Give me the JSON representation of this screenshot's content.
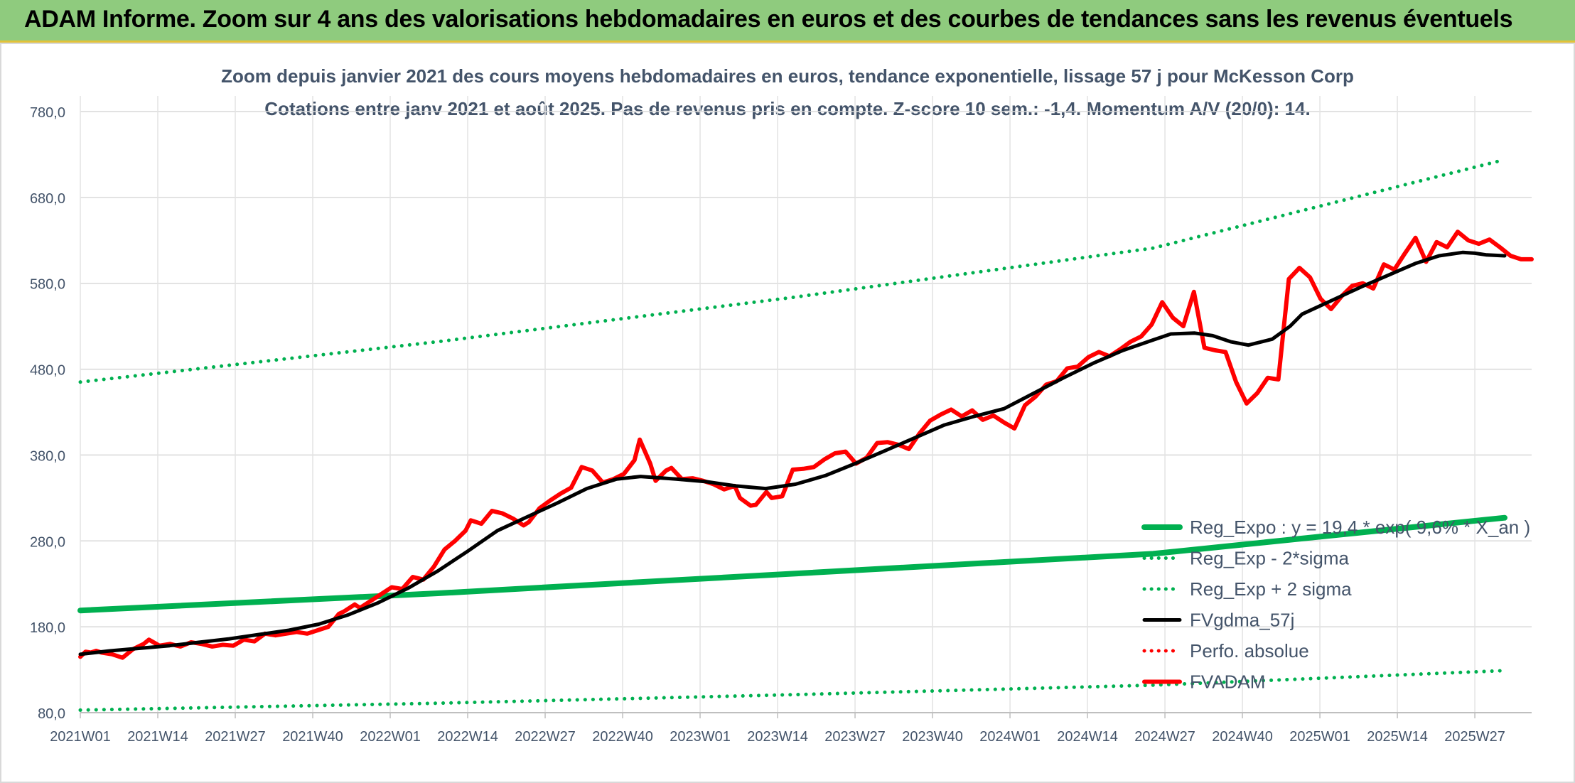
{
  "banner": {
    "title": "ADAM Informe. Zoom sur 4 ans des valorisations hebdomadaires en euros et des courbes de tendances sans les revenus éventuels"
  },
  "chart_data": {
    "type": "line",
    "title": "Zoom depuis janvier 2021 des cours moyens hebdomadaires en euros, tendance exponentielle, lissage 57 j pour McKesson Corp",
    "subtitle": "Cotations entre janv 2021 et août 2025. Pas de revenus pris en compte. Z-score 10 sem.: -1,4. Momentum A/V (20/0): 14.",
    "xlabel": "",
    "ylabel": "",
    "ylim": [
      80,
      780
    ],
    "y_ticks": [
      "80,0",
      "180,0",
      "280,0",
      "380,0",
      "480,0",
      "580,0",
      "680,0",
      "780,0"
    ],
    "x_ticks": [
      {
        "label": "2021W01",
        "week": 0
      },
      {
        "label": "2021W14",
        "week": 13
      },
      {
        "label": "2021W27",
        "week": 26
      },
      {
        "label": "2021W40",
        "week": 39
      },
      {
        "label": "2022W01",
        "week": 52
      },
      {
        "label": "2022W14",
        "week": 65
      },
      {
        "label": "2022W27",
        "week": 78
      },
      {
        "label": "2022W40",
        "week": 91
      },
      {
        "label": "2023W01",
        "week": 104
      },
      {
        "label": "2023W14",
        "week": 117
      },
      {
        "label": "2023W27",
        "week": 130
      },
      {
        "label": "2023W40",
        "week": 143
      },
      {
        "label": "2024W01",
        "week": 156
      },
      {
        "label": "2024W14",
        "week": 169
      },
      {
        "label": "2024W27",
        "week": 182
      },
      {
        "label": "2024W40",
        "week": 195
      },
      {
        "label": "2025W01",
        "week": 208
      },
      {
        "label": "2025W14",
        "week": 221
      },
      {
        "label": "2025W27",
        "week": 234
      }
    ],
    "x_max_week": 239,
    "grid": true,
    "legend_position": "bottom-right",
    "series": [
      {
        "name": "Reg_Expo : y = 19,4 * exp( 9,6% * X_an )",
        "color": "#00b050",
        "style": "solid",
        "width": 8,
        "points": [
          [
            0,
            199
          ],
          [
            60,
            219
          ],
          [
            120,
            242
          ],
          [
            180,
            265
          ],
          [
            239,
            307
          ]
        ]
      },
      {
        "name": "Reg_Exp - 2*sigma",
        "color": "#00b050",
        "style": "dotted",
        "width": 5,
        "points": [
          [
            0,
            83
          ],
          [
            60,
            91
          ],
          [
            120,
            101
          ],
          [
            180,
            112
          ],
          [
            239,
            129
          ]
        ]
      },
      {
        "name": "Reg_Exp + 2 sigma",
        "color": "#00b050",
        "style": "dotted",
        "width": 5,
        "points": [
          [
            0,
            465
          ],
          [
            60,
            512
          ],
          [
            120,
            564
          ],
          [
            180,
            621
          ],
          [
            239,
            724
          ]
        ]
      },
      {
        "name": "FVgdma_57j",
        "color": "#000000",
        "style": "solid",
        "width": 5,
        "points": [
          [
            0,
            148
          ],
          [
            5,
            152
          ],
          [
            10,
            155
          ],
          [
            15,
            158
          ],
          [
            20,
            162
          ],
          [
            25,
            166
          ],
          [
            30,
            171
          ],
          [
            35,
            176
          ],
          [
            40,
            183
          ],
          [
            45,
            194
          ],
          [
            50,
            208
          ],
          [
            55,
            225
          ],
          [
            60,
            245
          ],
          [
            65,
            268
          ],
          [
            70,
            292
          ],
          [
            75,
            308
          ],
          [
            80,
            324
          ],
          [
            85,
            341
          ],
          [
            90,
            352
          ],
          [
            94,
            355
          ],
          [
            100,
            352
          ],
          [
            105,
            349
          ],
          [
            110,
            344
          ],
          [
            115,
            341
          ],
          [
            120,
            346
          ],
          [
            125,
            356
          ],
          [
            130,
            370
          ],
          [
            135,
            385
          ],
          [
            140,
            400
          ],
          [
            145,
            415
          ],
          [
            150,
            425
          ],
          [
            155,
            434
          ],
          [
            160,
            452
          ],
          [
            165,
            470
          ],
          [
            170,
            487
          ],
          [
            175,
            502
          ],
          [
            180,
            514
          ],
          [
            183,
            521
          ],
          [
            187,
            522
          ],
          [
            190,
            519
          ],
          [
            193,
            512
          ],
          [
            196,
            508
          ],
          [
            200,
            515
          ],
          [
            203,
            530
          ],
          [
            205,
            544
          ],
          [
            210,
            560
          ],
          [
            215,
            576
          ],
          [
            220,
            591
          ],
          [
            224,
            603
          ],
          [
            228,
            612
          ],
          [
            232,
            616
          ],
          [
            234,
            615
          ],
          [
            236,
            613
          ],
          [
            239,
            612
          ]
        ]
      },
      {
        "name": "Perfo. absolue",
        "color": "#ff0000",
        "style": "dotted",
        "width": 5,
        "points": []
      },
      {
        "name": "FVADAM",
        "color": "#ff0000",
        "style": "solid",
        "width": 6,
        "points": [
          [
            0,
            145
          ],
          [
            1,
            151
          ],
          [
            2,
            150
          ],
          [
            3,
            152
          ],
          [
            4,
            150
          ],
          [
            6,
            148
          ],
          [
            8,
            144
          ],
          [
            10,
            154
          ],
          [
            12,
            160
          ],
          [
            13,
            165
          ],
          [
            15,
            158
          ],
          [
            17,
            160
          ],
          [
            19,
            157
          ],
          [
            21,
            162
          ],
          [
            23,
            160
          ],
          [
            25,
            157
          ],
          [
            27,
            159
          ],
          [
            29,
            158
          ],
          [
            31,
            165
          ],
          [
            33,
            163
          ],
          [
            35,
            172
          ],
          [
            37,
            170
          ],
          [
            39,
            172
          ],
          [
            41,
            174
          ],
          [
            43,
            172
          ],
          [
            45,
            176
          ],
          [
            47,
            180
          ],
          [
            49,
            195
          ],
          [
            50,
            198
          ],
          [
            52,
            206
          ],
          [
            53,
            202
          ],
          [
            55,
            210
          ],
          [
            57,
            218
          ],
          [
            59,
            226
          ],
          [
            61,
            224
          ],
          [
            63,
            238
          ],
          [
            65,
            235
          ],
          [
            67,
            250
          ],
          [
            69,
            270
          ],
          [
            71,
            280
          ],
          [
            73,
            292
          ],
          [
            74,
            304
          ],
          [
            76,
            300
          ],
          [
            78,
            315
          ],
          [
            80,
            312
          ],
          [
            82,
            306
          ],
          [
            84,
            298
          ],
          [
            85,
            302
          ],
          [
            87,
            318
          ],
          [
            89,
            327
          ],
          [
            91,
            335
          ],
          [
            93,
            342
          ],
          [
            95,
            366
          ],
          [
            97,
            362
          ],
          [
            99,
            348
          ],
          [
            101,
            352
          ],
          [
            103,
            358
          ],
          [
            105,
            374
          ],
          [
            106,
            398
          ],
          [
            108,
            370
          ],
          [
            109,
            350
          ],
          [
            111,
            362
          ],
          [
            112,
            365
          ],
          [
            114,
            352
          ],
          [
            116,
            353
          ],
          [
            118,
            350
          ],
          [
            120,
            346
          ],
          [
            122,
            340
          ],
          [
            124,
            344
          ],
          [
            125,
            330
          ],
          [
            127,
            321
          ],
          [
            128,
            322
          ],
          [
            130,
            337
          ],
          [
            131,
            330
          ],
          [
            133,
            332
          ],
          [
            135,
            363
          ],
          [
            137,
            364
          ],
          [
            139,
            366
          ],
          [
            141,
            375
          ],
          [
            143,
            382
          ],
          [
            145,
            384
          ],
          [
            147,
            370
          ],
          [
            149,
            377
          ],
          [
            151,
            394
          ],
          [
            153,
            395
          ],
          [
            155,
            392
          ],
          [
            157,
            387
          ],
          [
            159,
            405
          ],
          [
            161,
            420
          ],
          [
            163,
            427
          ],
          [
            165,
            433
          ],
          [
            167,
            425
          ],
          [
            169,
            432
          ],
          [
            171,
            421
          ],
          [
            173,
            426
          ],
          [
            175,
            418
          ],
          [
            177,
            411
          ],
          [
            179,
            438
          ],
          [
            181,
            448
          ],
          [
            183,
            462
          ],
          [
            185,
            466
          ],
          [
            187,
            481
          ],
          [
            189,
            483
          ],
          [
            191,
            494
          ],
          [
            193,
            500
          ],
          [
            195,
            495
          ],
          [
            197,
            503
          ],
          [
            199,
            512
          ],
          [
            201,
            518
          ],
          [
            203,
            532
          ],
          [
            205,
            558
          ],
          [
            207,
            540
          ],
          [
            209,
            530
          ],
          [
            211,
            570
          ],
          [
            213,
            505
          ],
          [
            215,
            502
          ],
          [
            217,
            500
          ],
          [
            219,
            465
          ],
          [
            221,
            440
          ],
          [
            223,
            452
          ],
          [
            225,
            470
          ],
          [
            227,
            468
          ],
          [
            229,
            585
          ],
          [
            231,
            598
          ],
          [
            233,
            587
          ],
          [
            235,
            562
          ],
          [
            237,
            550
          ],
          [
            239,
            565
          ],
          [
            241,
            577
          ],
          [
            243,
            580
          ],
          [
            245,
            574
          ],
          [
            247,
            602
          ],
          [
            249,
            596
          ],
          [
            251,
            615
          ],
          [
            253,
            633
          ],
          [
            255,
            605
          ],
          [
            257,
            628
          ],
          [
            259,
            622
          ],
          [
            261,
            640
          ],
          [
            263,
            630
          ],
          [
            265,
            626
          ],
          [
            267,
            631
          ],
          [
            269,
            622
          ],
          [
            271,
            612
          ],
          [
            273,
            608
          ],
          [
            275,
            608
          ]
        ]
      }
    ],
    "fvadam_x_max": 275
  }
}
